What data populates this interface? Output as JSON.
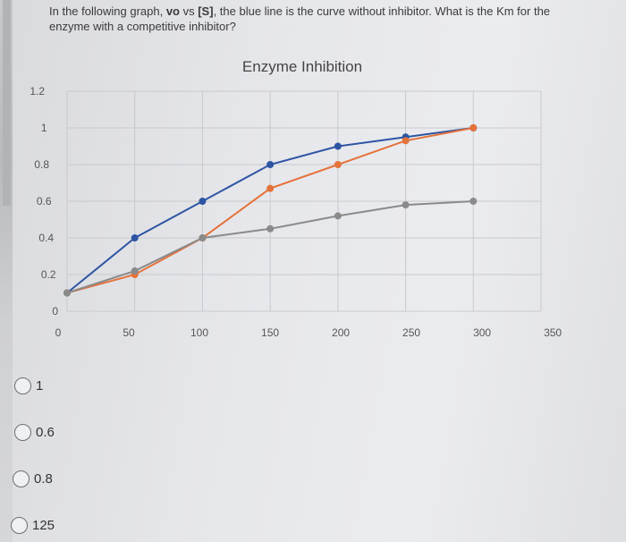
{
  "question": {
    "part1": "In the following graph, ",
    "bold1": "vo",
    "part2": " vs ",
    "bold2": "[S]",
    "part3": ", the blue line is the curve without inhibitor. What is the Km for the enzyme with a competitive inhibitor?"
  },
  "chart_data": {
    "type": "line",
    "title": "Enzyme Inhibition",
    "xlim": [
      0,
      350
    ],
    "ylim": [
      0,
      1.2
    ],
    "x_ticks": [
      "0",
      "50",
      "100",
      "150",
      "200",
      "250",
      "300",
      "350"
    ],
    "y_ticks": [
      "0",
      "0.2",
      "0.4",
      "0.6",
      "0.8",
      "1",
      "1.2"
    ],
    "grid": true,
    "series": [
      {
        "color": "#2e55a3",
        "x": [
          0,
          50,
          100,
          150,
          200,
          250,
          300
        ],
        "y": [
          0.1,
          0.4,
          0.6,
          0.8,
          0.9,
          0.95,
          1.0
        ]
      },
      {
        "color": "#e5723a",
        "x": [
          0,
          50,
          100,
          150,
          200,
          250,
          300
        ],
        "y": [
          0.1,
          0.2,
          0.4,
          0.67,
          0.8,
          0.93,
          1.0
        ]
      },
      {
        "color": "#8a8a8a",
        "x": [
          0,
          50,
          100,
          150,
          200,
          250,
          300
        ],
        "y": [
          0.1,
          0.22,
          0.4,
          0.45,
          0.52,
          0.58,
          0.6
        ]
      }
    ]
  },
  "options": [
    {
      "label": "1"
    },
    {
      "label": "0.6"
    },
    {
      "label": "0.8"
    },
    {
      "label": "125"
    }
  ]
}
